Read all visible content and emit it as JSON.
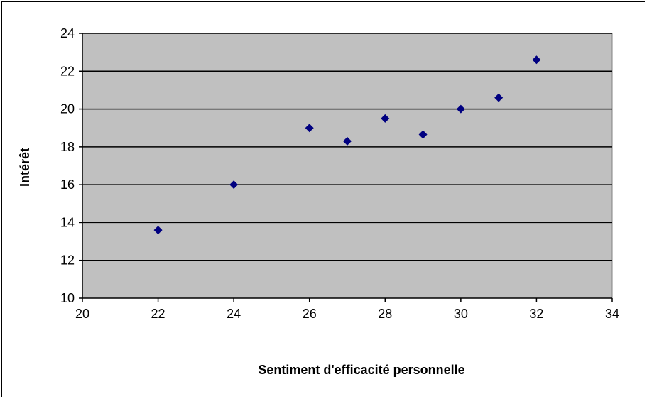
{
  "chart_data": {
    "type": "scatter",
    "title": "",
    "xlabel": "Sentiment d'efficacité personnelle",
    "ylabel": "Intérêt",
    "xlim": [
      20,
      34
    ],
    "ylim": [
      10,
      24
    ],
    "xticks": [
      20,
      22,
      24,
      26,
      28,
      30,
      32,
      34
    ],
    "yticks": [
      10,
      12,
      14,
      16,
      18,
      20,
      22,
      24
    ],
    "grid": "horizontal",
    "legend": "none",
    "colors": {
      "plot_background": "#c0c0c0",
      "marker": "#000080",
      "gridline": "#000000"
    },
    "marker": "diamond",
    "points": [
      {
        "x": 22,
        "y": 13.6
      },
      {
        "x": 24,
        "y": 16.0
      },
      {
        "x": 26,
        "y": 19.0
      },
      {
        "x": 27,
        "y": 18.3
      },
      {
        "x": 28,
        "y": 19.5
      },
      {
        "x": 29,
        "y": 18.65
      },
      {
        "x": 30,
        "y": 20.0
      },
      {
        "x": 31,
        "y": 20.6
      },
      {
        "x": 32,
        "y": 22.6
      }
    ]
  }
}
